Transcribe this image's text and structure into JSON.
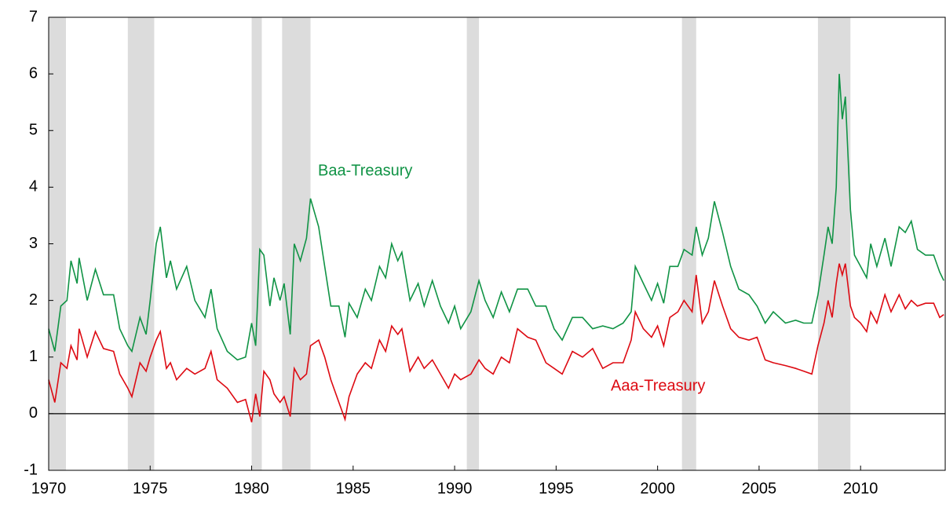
{
  "chart_data": {
    "type": "line",
    "x": [
      1970.0,
      1970.3,
      1970.6,
      1970.9,
      1971.1,
      1971.4,
      1971.5,
      1971.9,
      1972.3,
      1972.7,
      1973.2,
      1973.5,
      1973.9,
      1974.1,
      1974.5,
      1974.8,
      1975.0,
      1975.3,
      1975.5,
      1975.8,
      1976.0,
      1976.3,
      1976.8,
      1977.2,
      1977.7,
      1978.0,
      1978.3,
      1978.8,
      1979.3,
      1979.7,
      1980.0,
      1980.2,
      1980.4,
      1980.6,
      1980.9,
      1981.1,
      1981.4,
      1981.6,
      1981.9,
      1982.1,
      1982.4,
      1982.7,
      1982.9,
      1983.3,
      1983.6,
      1983.9,
      1984.3,
      1984.6,
      1984.8,
      1985.2,
      1985.6,
      1985.9,
      1986.3,
      1986.6,
      1986.9,
      1987.2,
      1987.4,
      1987.8,
      1988.2,
      1988.5,
      1988.9,
      1989.3,
      1989.7,
      1990.0,
      1990.3,
      1990.8,
      1991.2,
      1991.5,
      1991.9,
      1992.3,
      1992.7,
      1993.1,
      1993.6,
      1994.0,
      1994.5,
      1994.9,
      1995.3,
      1995.8,
      1996.3,
      1996.8,
      1997.3,
      1997.8,
      1998.3,
      1998.7,
      1998.9,
      1999.3,
      1999.7,
      2000.0,
      2000.3,
      2000.6,
      2001.0,
      2001.3,
      2001.7,
      2001.9,
      2002.2,
      2002.5,
      2002.8,
      2003.2,
      2003.6,
      2004.0,
      2004.5,
      2004.9,
      2005.3,
      2005.7,
      2006.3,
      2006.8,
      2007.2,
      2007.6,
      2007.9,
      2008.2,
      2008.4,
      2008.6,
      2008.8,
      2008.95,
      2009.1,
      2009.25,
      2009.5,
      2009.7,
      2010.0,
      2010.3,
      2010.5,
      2010.8,
      2011.2,
      2011.5,
      2011.9,
      2012.2,
      2012.5,
      2012.8,
      2013.2,
      2013.6,
      2013.9,
      2014.1
    ],
    "series": [
      {
        "name": "Baa-Treasury",
        "color": "#109345",
        "values": [
          1.5,
          1.1,
          1.9,
          2.0,
          2.7,
          2.3,
          2.75,
          2.0,
          2.55,
          2.1,
          2.1,
          1.5,
          1.2,
          1.1,
          1.7,
          1.4,
          2.0,
          3.0,
          3.3,
          2.4,
          2.7,
          2.2,
          2.6,
          2.0,
          1.7,
          2.2,
          1.5,
          1.1,
          0.95,
          1.0,
          1.6,
          1.2,
          2.9,
          2.8,
          1.9,
          2.4,
          2.0,
          2.3,
          1.4,
          3.0,
          2.7,
          3.1,
          3.8,
          3.3,
          2.6,
          1.9,
          1.9,
          1.35,
          1.95,
          1.7,
          2.2,
          2.0,
          2.6,
          2.4,
          3.0,
          2.7,
          2.85,
          2.0,
          2.3,
          1.9,
          2.35,
          1.9,
          1.6,
          1.9,
          1.5,
          1.8,
          2.35,
          2.0,
          1.7,
          2.15,
          1.8,
          2.2,
          2.2,
          1.9,
          1.9,
          1.5,
          1.3,
          1.7,
          1.7,
          1.5,
          1.55,
          1.5,
          1.6,
          1.8,
          2.6,
          2.3,
          2.0,
          2.3,
          1.95,
          2.6,
          2.6,
          2.9,
          2.8,
          3.3,
          2.8,
          3.1,
          3.75,
          3.2,
          2.6,
          2.2,
          2.1,
          1.9,
          1.6,
          1.8,
          1.6,
          1.65,
          1.6,
          1.6,
          2.1,
          2.8,
          3.3,
          3.0,
          4.0,
          6.0,
          5.2,
          5.6,
          3.6,
          2.8,
          2.6,
          2.4,
          3.0,
          2.6,
          3.1,
          2.6,
          3.3,
          3.2,
          3.4,
          2.9,
          2.8,
          2.8,
          2.5,
          2.35
        ]
      },
      {
        "name": "Aaa-Treasury",
        "color": "#dd0a12",
        "values": [
          0.6,
          0.2,
          0.9,
          0.8,
          1.2,
          0.95,
          1.5,
          1.0,
          1.45,
          1.15,
          1.1,
          0.7,
          0.45,
          0.3,
          0.9,
          0.75,
          1.0,
          1.3,
          1.45,
          0.8,
          0.9,
          0.6,
          0.8,
          0.7,
          0.8,
          1.1,
          0.6,
          0.45,
          0.2,
          0.25,
          -0.15,
          0.35,
          -0.05,
          0.75,
          0.6,
          0.35,
          0.2,
          0.3,
          -0.05,
          0.8,
          0.6,
          0.7,
          1.2,
          1.3,
          1.0,
          0.6,
          0.2,
          -0.1,
          0.3,
          0.7,
          0.9,
          0.8,
          1.3,
          1.1,
          1.55,
          1.4,
          1.5,
          0.75,
          1.0,
          0.8,
          0.95,
          0.7,
          0.45,
          0.7,
          0.6,
          0.7,
          0.95,
          0.8,
          0.7,
          1.0,
          0.9,
          1.5,
          1.35,
          1.3,
          0.9,
          0.8,
          0.7,
          1.1,
          1.0,
          1.15,
          0.8,
          0.9,
          0.9,
          1.3,
          1.8,
          1.5,
          1.35,
          1.55,
          1.2,
          1.7,
          1.8,
          2.0,
          1.8,
          2.45,
          1.6,
          1.8,
          2.35,
          1.9,
          1.5,
          1.35,
          1.3,
          1.35,
          0.95,
          0.9,
          0.85,
          0.8,
          0.75,
          0.7,
          1.2,
          1.6,
          2.0,
          1.7,
          2.3,
          2.65,
          2.45,
          2.65,
          1.9,
          1.7,
          1.6,
          1.45,
          1.8,
          1.6,
          2.1,
          1.8,
          2.1,
          1.85,
          2.0,
          1.9,
          1.95,
          1.95,
          1.7,
          1.75
        ]
      }
    ],
    "recessions": [
      [
        1970.0,
        1970.85
      ],
      [
        1973.9,
        1975.2
      ],
      [
        1980.0,
        1980.5
      ],
      [
        1981.5,
        1982.9
      ],
      [
        1990.6,
        1991.2
      ],
      [
        2001.2,
        2001.9
      ],
      [
        2007.9,
        2009.5
      ]
    ],
    "recession_color": "#dcdcdc",
    "xlim": [
      1970,
      2014.17
    ],
    "xticks": [
      1970,
      1975,
      1980,
      1985,
      1990,
      1995,
      2000,
      2005,
      2010
    ],
    "ylim": [
      -1,
      7
    ],
    "yticks": [
      -1,
      0,
      1,
      2,
      3,
      4,
      5,
      6,
      7
    ],
    "zero_line": 0
  }
}
